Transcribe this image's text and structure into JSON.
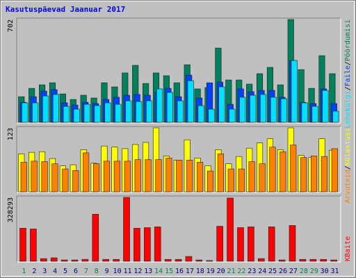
{
  "chart_data": [
    {
      "type": "bar",
      "title": "Kasutuspäevad Jaanuar 2017",
      "ylim": [
        0,
        702
      ],
      "yticks": [
        702
      ],
      "legend_separator": "/",
      "series": [
        {
          "name": "Pöördumisi",
          "color": "#00805c",
          "values": [
            175,
            232,
            256,
            270,
            194,
            156,
            185,
            166,
            270,
            242,
            337,
            389,
            265,
            337,
            318,
            270,
            393,
            228,
            237,
            507,
            289,
            289,
            261,
            332,
            375,
            256,
            702,
            360,
            232,
            455,
            332
          ]
        },
        {
          "name": "Faile",
          "color": "#0040ff",
          "values": [
            137,
            175,
            213,
            223,
            133,
            118,
            137,
            128,
            156,
            171,
            185,
            190,
            185,
            204,
            232,
            175,
            322,
            166,
            270,
            275,
            123,
            228,
            209,
            218,
            218,
            171,
            422,
            137,
            128,
            228,
            128
          ]
        },
        {
          "name": "Lehekülgi",
          "color": "#00e0ff",
          "values": [
            133,
            133,
            180,
            190,
            109,
            90,
            123,
            114,
            133,
            123,
            147,
            142,
            147,
            228,
            204,
            147,
            284,
            114,
            90,
            242,
            90,
            171,
            185,
            190,
            171,
            161,
            422,
            133,
            109,
            218,
            76
          ]
        }
      ]
    },
    {
      "type": "bar",
      "ylim": [
        0,
        123
      ],
      "yticks": [
        123
      ],
      "legend_separator": "/",
      "series": [
        {
          "name": "Külastusi",
          "color": "#ffff00",
          "values": [
            73,
            76,
            77,
            64,
            50,
            52,
            81,
            55,
            88,
            86,
            83,
            91,
            95,
            123,
            69,
            61,
            100,
            65,
            50,
            81,
            54,
            68,
            84,
            94,
            102,
            81,
            123,
            70,
            66,
            102,
            80
          ]
        },
        {
          "name": "Arvuteid",
          "color": "#ff8000",
          "values": [
            57,
            59,
            58,
            54,
            44,
            41,
            75,
            54,
            59,
            59,
            59,
            62,
            62,
            62,
            65,
            61,
            61,
            57,
            40,
            73,
            44,
            44,
            58,
            54,
            86,
            77,
            90,
            66,
            69,
            68,
            83
          ]
        }
      ]
    },
    {
      "type": "bar",
      "ylim": [
        0,
        328293
      ],
      "yticks": [
        328293
      ],
      "categories": [
        "1",
        "2",
        "3",
        "4",
        "5",
        "6",
        "7",
        "8",
        "9",
        "10",
        "11",
        "12",
        "13",
        "14",
        "15",
        "16",
        "17",
        "18",
        "19",
        "20",
        "21",
        "22",
        "23",
        "24",
        "25",
        "26",
        "27",
        "28",
        "29",
        "30",
        "31"
      ],
      "category_colors": [
        "#00805c",
        "#000080",
        "#000080",
        "#000080",
        "#000080",
        "#000080",
        "#00805c",
        "#00805c",
        "#000080",
        "#000080",
        "#000080",
        "#000080",
        "#000080",
        "#00805c",
        "#00805c",
        "#000080",
        "#000080",
        "#000080",
        "#000080",
        "#000080",
        "#00805c",
        "#00805c",
        "#000080",
        "#000080",
        "#000080",
        "#000080",
        "#000080",
        "#00805c",
        "#00805c",
        "#000080",
        "#000080"
      ],
      "series": [
        {
          "name": "KBaite",
          "color": "#ff0000",
          "values": [
            170000,
            166000,
            14000,
            18000,
            7000,
            7000,
            10000,
            242000,
            10000,
            10000,
            328293,
            170000,
            173000,
            177000,
            10000,
            10000,
            25000,
            7000,
            4000,
            180000,
            325000,
            173000,
            177000,
            14000,
            177000,
            7000,
            184000,
            10000,
            10000,
            10000,
            7000
          ]
        }
      ]
    }
  ]
}
